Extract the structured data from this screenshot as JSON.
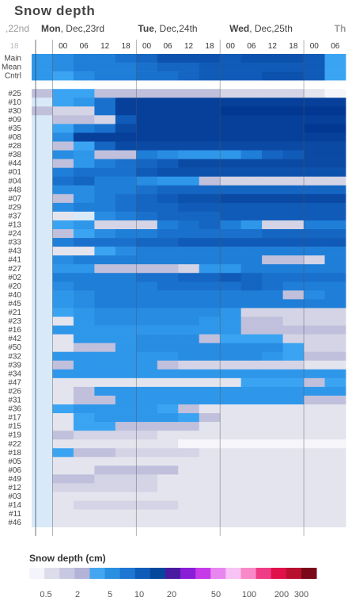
{
  "title": "Snow depth",
  "chart_data": {
    "type": "heatmap",
    "title": "Snow depth",
    "unit": "cm",
    "days": [
      {
        "name": "",
        "date": ",22nd",
        "partial": true
      },
      {
        "name": "Mon",
        "date": ", Dec,23rd"
      },
      {
        "name": "Tue",
        "date": ", Dec,24th"
      },
      {
        "name": "Wed",
        "date": ", Dec,25th"
      },
      {
        "name": "Th",
        "date": "",
        "partial": true
      }
    ],
    "hours": [
      "18",
      "00",
      "06",
      "12",
      "18",
      "00",
      "06",
      "12",
      "18",
      "00",
      "06",
      "12",
      "18",
      "00",
      "06"
    ],
    "rows": [
      {
        "label": "Main",
        "values": [
          2.5,
          3.2,
          3.5,
          3.5,
          3.8,
          4.5,
          5.5,
          5.5,
          5.5,
          5.2,
          5.5,
          5.5,
          5.5,
          5.0,
          2.2
        ]
      },
      {
        "label": "Mean",
        "values": [
          2.5,
          3.0,
          3.3,
          3.3,
          3.5,
          4.0,
          4.5,
          4.5,
          4.8,
          5.0,
          5.0,
          5.2,
          5.2,
          4.8,
          2.2
        ]
      },
      {
        "label": "Cntrl",
        "values": [
          2.5,
          2.2,
          3.2,
          3.5,
          3.5,
          4.0,
          4.0,
          4.5,
          5.0,
          5.0,
          5.0,
          5.5,
          5.5,
          5.0,
          2.2
        ]
      },
      {
        "label": "",
        "values": []
      },
      {
        "label": "#25",
        "values": [
          0.8,
          2.2,
          2.2,
          0.7,
          0.7,
          0.8,
          0.8,
          0.7,
          0.7,
          0.6,
          0.6,
          0.6,
          0.5,
          0.3,
          0.2
        ]
      },
      {
        "label": "#10",
        "values": [
          1.0,
          2.2,
          2.5,
          4.0,
          8,
          8,
          8,
          8,
          8,
          8,
          8,
          8,
          8,
          8,
          8
        ]
      },
      {
        "label": "#30",
        "values": [
          0.8,
          0.6,
          0.6,
          4.0,
          8,
          8,
          8,
          8,
          8,
          9,
          9,
          9,
          9,
          9,
          9
        ]
      },
      {
        "label": "#09",
        "values": [
          1.0,
          0.8,
          0.8,
          0.6,
          5.0,
          8,
          8,
          8,
          8,
          8,
          8,
          8,
          8,
          8,
          8
        ]
      },
      {
        "label": "#35",
        "values": [
          1.0,
          2.2,
          3.5,
          4.0,
          7,
          8,
          8,
          8,
          8,
          8,
          8,
          8,
          8,
          9,
          9
        ]
      },
      {
        "label": "#08",
        "values": [
          1.0,
          3.0,
          8,
          8,
          8,
          8,
          8,
          8,
          8,
          8,
          8,
          8,
          8,
          8,
          8
        ]
      },
      {
        "label": "#28",
        "values": [
          1.0,
          0.7,
          2.2,
          4.5,
          7,
          7,
          7,
          7,
          7,
          7,
          7,
          7,
          7,
          7,
          7
        ]
      },
      {
        "label": "#38",
        "values": [
          1.0,
          3.0,
          2.5,
          0.7,
          0.7,
          3.5,
          3.0,
          2.8,
          2.8,
          2.5,
          3.5,
          4.5,
          5.0,
          7,
          7
        ]
      },
      {
        "label": "#44",
        "values": [
          1.0,
          0.7,
          2.8,
          3.5,
          4.0,
          4.5,
          5.0,
          7,
          7,
          7,
          7,
          7,
          7,
          7,
          7
        ]
      },
      {
        "label": "#01",
        "values": [
          1.0,
          3.5,
          3.8,
          4.0,
          4.0,
          5.0,
          5.5,
          5.5,
          5.5,
          5.5,
          5.5,
          5.5,
          5.5,
          5.5,
          5.5
        ]
      },
      {
        "label": "#04",
        "values": [
          1.0,
          4.0,
          4.5,
          3.5,
          3.5,
          3.0,
          2.5,
          2.8,
          0.7,
          0.6,
          0.6,
          0.6,
          0.5,
          0.5,
          0.5
        ]
      },
      {
        "label": "#48",
        "values": [
          1.0,
          3.0,
          3.2,
          3.5,
          3.5,
          4.0,
          4.5,
          4.5,
          4.5,
          4.5,
          4.5,
          4.5,
          4.5,
          4.5,
          4.5
        ]
      },
      {
        "label": "#07",
        "values": [
          1.0,
          0.8,
          3.0,
          3.5,
          4.0,
          4.5,
          5.0,
          5.5,
          5.5,
          7,
          7,
          7,
          7,
          7,
          7
        ]
      },
      {
        "label": "#29",
        "values": [
          1.0,
          3.0,
          3.5,
          3.5,
          4.0,
          4.5,
          4.5,
          5.0,
          5.0,
          5.0,
          5.0,
          5.0,
          5.0,
          5.0,
          5.0
        ]
      },
      {
        "label": "#37",
        "values": [
          1.0,
          0.3,
          1.0,
          3.0,
          3.5,
          4.0,
          4.5,
          4.5,
          4.5,
          5.0,
          5.0,
          5.0,
          5.0,
          5.0,
          5.0
        ]
      },
      {
        "label": "#13",
        "values": [
          1.0,
          2.2,
          2.5,
          0.6,
          0.6,
          0.6,
          3.5,
          4.0,
          4.5,
          3.5,
          2.8,
          0.6,
          0.6,
          3.5,
          3.5
        ]
      },
      {
        "label": "#24",
        "values": [
          1.0,
          0.8,
          2.2,
          3.0,
          3.5,
          3.5,
          4.0,
          4.0,
          4.0,
          4.0,
          4.0,
          4.5,
          4.5,
          4.5,
          4.5
        ]
      },
      {
        "label": "#33",
        "values": [
          1.0,
          3.5,
          4.0,
          4.0,
          4.0,
          4.5,
          4.5,
          5.0,
          5.0,
          5.0,
          5.0,
          5.0,
          5.0,
          5.0,
          5.0
        ]
      },
      {
        "label": "#43",
        "values": [
          1.0,
          0.3,
          0.3,
          2.2,
          3.0,
          3.5,
          3.5,
          3.5,
          3.5,
          3.5,
          3.5,
          3.5,
          3.5,
          3.5,
          3.5
        ]
      },
      {
        "label": "#41",
        "values": [
          1.0,
          3.0,
          3.5,
          3.5,
          3.5,
          3.5,
          3.5,
          3.5,
          3.5,
          3.5,
          3.5,
          0.7,
          0.7,
          0.6,
          3.5
        ]
      },
      {
        "label": "#27",
        "values": [
          1.0,
          2.5,
          2.8,
          0.7,
          0.7,
          0.7,
          0.7,
          0.6,
          2.8,
          2.8,
          3.5,
          3.5,
          3.5,
          3.5,
          3.5
        ]
      },
      {
        "label": "#02",
        "values": [
          1.0,
          3.5,
          3.5,
          3.5,
          3.5,
          4.0,
          4.0,
          4.5,
          4.5,
          5.0,
          4.5,
          4.0,
          4.0,
          4.0,
          4.0
        ]
      },
      {
        "label": "#20",
        "values": [
          1.0,
          3.0,
          3.5,
          3.5,
          3.5,
          3.5,
          4.0,
          4.0,
          4.0,
          4.0,
          4.5,
          4.0,
          3.5,
          3.5,
          3.5
        ]
      },
      {
        "label": "#40",
        "values": [
          1.0,
          2.5,
          3.0,
          3.5,
          3.5,
          3.5,
          3.5,
          3.5,
          3.5,
          3.5,
          3.5,
          3.5,
          0.7,
          3.0,
          3.5
        ]
      },
      {
        "label": "#45",
        "values": [
          1.0,
          2.5,
          3.0,
          3.5,
          3.5,
          3.5,
          3.5,
          3.5,
          3.5,
          3.5,
          3.5,
          3.5,
          3.5,
          3.5,
          3.5
        ]
      },
      {
        "label": "#21",
        "values": [
          1.0,
          2.2,
          2.8,
          3.0,
          3.0,
          3.0,
          3.0,
          3.0,
          3.0,
          2.5,
          0.6,
          0.6,
          0.5,
          0.5,
          0.5
        ]
      },
      {
        "label": "#23",
        "values": [
          1.0,
          0.3,
          2.5,
          3.0,
          3.0,
          3.0,
          3.0,
          3.0,
          2.8,
          2.5,
          0.7,
          0.7,
          0.6,
          0.5,
          0.5
        ]
      },
      {
        "label": "#16",
        "values": [
          1.0,
          2.5,
          2.8,
          2.8,
          2.8,
          2.8,
          2.8,
          2.8,
          2.8,
          2.5,
          0.7,
          0.7,
          0.7,
          0.7,
          0.7
        ]
      },
      {
        "label": "#42",
        "values": [
          1.0,
          0.3,
          2.5,
          2.8,
          2.8,
          3.0,
          3.0,
          3.0,
          0.7,
          2.2,
          2.2,
          2.2,
          0.5,
          0.5,
          0.5
        ]
      },
      {
        "label": "#50",
        "values": [
          1.0,
          0.3,
          0.7,
          0.7,
          2.8,
          3.0,
          3.0,
          3.0,
          3.0,
          3.0,
          3.0,
          3.0,
          2.2,
          0.6,
          0.6
        ]
      },
      {
        "label": "#32",
        "values": [
          1.0,
          2.5,
          2.8,
          2.8,
          2.8,
          2.8,
          2.8,
          3.0,
          3.0,
          3.0,
          3.0,
          2.5,
          2.2,
          0.8,
          0.8
        ]
      },
      {
        "label": "#39",
        "values": [
          1.0,
          0.7,
          2.5,
          2.8,
          2.8,
          2.8,
          0.7,
          0.6,
          0.6,
          0.6,
          0.6,
          0.5,
          0.5,
          0.4,
          0.4
        ]
      },
      {
        "label": "#34",
        "values": [
          1.0,
          2.5,
          2.8,
          2.8,
          2.8,
          2.8,
          2.8,
          2.8,
          2.8,
          2.8,
          2.8,
          2.8,
          2.8,
          2.5,
          2.5
        ]
      },
      {
        "label": "#47",
        "values": [
          1.0,
          0.4,
          0.4,
          0.4,
          0.4,
          0.4,
          0.4,
          0.4,
          0.4,
          0.3,
          2.2,
          2.2,
          2.2,
          0.7,
          2.2
        ]
      },
      {
        "label": "#26",
        "values": [
          1.0,
          0.4,
          0.7,
          2.5,
          2.8,
          2.8,
          2.8,
          2.8,
          2.8,
          2.8,
          2.8,
          2.8,
          2.8,
          2.8,
          2.8
        ]
      },
      {
        "label": "#31",
        "values": [
          1.0,
          0.4,
          0.7,
          0.7,
          2.5,
          2.8,
          2.8,
          2.8,
          2.8,
          2.8,
          2.8,
          2.8,
          2.5,
          0.7,
          0.7
        ]
      },
      {
        "label": "#36",
        "values": [
          1.0,
          2.2,
          2.5,
          2.5,
          2.5,
          2.5,
          2.2,
          0.7,
          0.4,
          0.4,
          0.4,
          0.4,
          0.4,
          0.4,
          0.4
        ]
      },
      {
        "label": "#17",
        "values": [
          1.0,
          0.4,
          2.2,
          2.5,
          2.5,
          2.5,
          2.5,
          2.2,
          0.7,
          0.4,
          0.4,
          0.4,
          0.4,
          0.4,
          0.4
        ]
      },
      {
        "label": "#15",
        "values": [
          1.0,
          0.4,
          2.2,
          2.2,
          0.8,
          0.8,
          0.8,
          0.8,
          0.4,
          0.4,
          0.4,
          0.4,
          0.4,
          0.4,
          0.4
        ]
      },
      {
        "label": "#19",
        "values": [
          1.0,
          0.8,
          0.6,
          0.6,
          0.6,
          0.6,
          0.3,
          0.3,
          0.3,
          0.3,
          0.3,
          0.3,
          0.3,
          0.3,
          0.3
        ]
      },
      {
        "label": "#22",
        "values": [
          1.0,
          0.4,
          0.4,
          0.4,
          0.4,
          0.4,
          0.3,
          0.2,
          0.2,
          0.2,
          0.2,
          0.2,
          0.2,
          0.2,
          0.2
        ]
      },
      {
        "label": "#18",
        "values": [
          1.0,
          2.2,
          0.8,
          0.8,
          0.6,
          0.6,
          0.6,
          0.6,
          0.4,
          0.3,
          0.3,
          0.3,
          0.3,
          0.3,
          0.3
        ]
      },
      {
        "label": "#05",
        "values": [
          1.0,
          0.4,
          0.4,
          0.4,
          0.4,
          0.4,
          0.4,
          0.3,
          0.3,
          0.3,
          0.3,
          0.3,
          0.3,
          0.3,
          0.3
        ]
      },
      {
        "label": "#06",
        "values": [
          1.0,
          0.4,
          0.4,
          0.8,
          0.8,
          0.8,
          0.8,
          0.3,
          0.3,
          0.3,
          0.3,
          0.3,
          0.3,
          0.3,
          0.3
        ]
      },
      {
        "label": "#49",
        "values": [
          1.0,
          0.7,
          0.7,
          0.6,
          0.6,
          0.5,
          0.4,
          0.4,
          0.3,
          0.3,
          0.3,
          0.3,
          0.3,
          0.3,
          0.3
        ]
      },
      {
        "label": "#12",
        "values": [
          1.0,
          0.5,
          0.5,
          0.5,
          0.5,
          0.5,
          0.4,
          0.3,
          0.3,
          0.3,
          0.3,
          0.3,
          0.3,
          0.3,
          0.3
        ]
      },
      {
        "label": "#03",
        "values": [
          1.0,
          0.4,
          0.4,
          0.4,
          0.4,
          0.4,
          0.4,
          0.3,
          0.3,
          0.3,
          0.3,
          0.3,
          0.3,
          0.3,
          0.3
        ]
      },
      {
        "label": "#14",
        "values": [
          1.0,
          0.4,
          0.6,
          0.6,
          0.6,
          0.6,
          0.6,
          0.3,
          0.3,
          0.3,
          0.3,
          0.3,
          0.3,
          0.3,
          0.3
        ]
      },
      {
        "label": "#11",
        "values": [
          1.0,
          0.4,
          0.4,
          0.4,
          0.4,
          0.4,
          0.3,
          0.3,
          0.3,
          0.3,
          0.3,
          0.3,
          0.3,
          0.3,
          0.3
        ]
      },
      {
        "label": "#46",
        "values": [
          1.0,
          0.4,
          0.4,
          0.4,
          0.3,
          0.3,
          0.3,
          0.3,
          0.3,
          0.3,
          0.3,
          0.3,
          0.3,
          0.3,
          0.3
        ]
      }
    ],
    "legend": {
      "title": "Snow depth (cm)",
      "ticks": [
        "0.5",
        "2",
        "5",
        "10",
        "20",
        "50",
        "100",
        "200",
        "300"
      ],
      "colors": [
        "#f4f4fb",
        "#dcdcea",
        "#c8c8e2",
        "#b3b3d8",
        "#44a6f0",
        "#2a8fe0",
        "#1c76d2",
        "#0f5cb8",
        "#06479e",
        "#4a1aa0",
        "#8a1ed8",
        "#c63ae8",
        "#e886f0",
        "#f7c2f4",
        "#f888c8",
        "#ee3c86",
        "#e0104a",
        "#b8102e",
        "#7a0818"
      ]
    }
  }
}
